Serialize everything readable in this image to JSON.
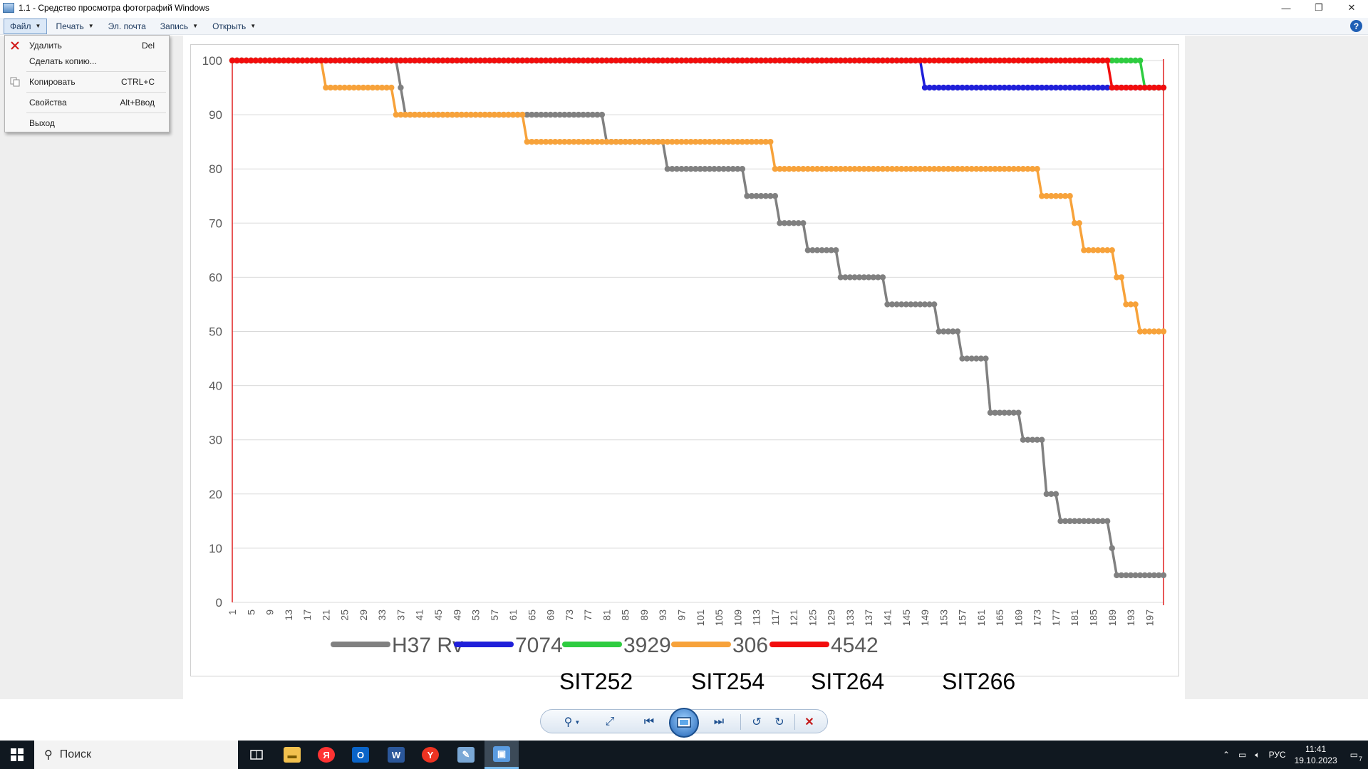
{
  "window": {
    "title": "1.1 - Средство просмотра фотографий Windows",
    "minimize": "—",
    "restore": "❐",
    "close": "✕"
  },
  "menubar": {
    "items": [
      {
        "label": "Файл",
        "active": true
      },
      {
        "label": "Печать"
      },
      {
        "label": "Эл. почта"
      },
      {
        "label": "Запись"
      },
      {
        "label": "Открыть"
      }
    ],
    "help_icon": "?"
  },
  "file_menu": {
    "items": [
      {
        "label": "Удалить",
        "shortcut": "Del",
        "icon": "delete-icon"
      },
      {
        "label": "Сделать копию...",
        "shortcut": ""
      },
      {
        "label": "Копировать",
        "shortcut": "CTRL+C",
        "icon": "copy-icon"
      },
      {
        "label": "Свойства",
        "shortcut": "Alt+Ввод"
      },
      {
        "label": "Выход",
        "shortcut": ""
      }
    ]
  },
  "chart_data": {
    "type": "line",
    "title": "",
    "xlabel": "",
    "ylabel": "",
    "ylim": [
      0,
      100
    ],
    "yticks": [
      0,
      10,
      20,
      30,
      40,
      50,
      60,
      70,
      80,
      90,
      100
    ],
    "xlim": [
      1,
      200
    ],
    "xtick_labels": [
      "1",
      "5",
      "9",
      "13",
      "17",
      "21",
      "25",
      "29",
      "33",
      "37",
      "41",
      "45",
      "49",
      "53",
      "57",
      "61",
      "65",
      "69",
      "73",
      "77",
      "81",
      "85",
      "89",
      "93",
      "97",
      "101",
      "105",
      "109",
      "113",
      "117",
      "121",
      "125",
      "129",
      "133",
      "137",
      "141",
      "145",
      "149",
      "153",
      "157",
      "161",
      "165",
      "169",
      "173",
      "177",
      "181",
      "185",
      "189",
      "193",
      "197"
    ],
    "grid": true,
    "legend_position": "bottom",
    "series": [
      {
        "name": "H37 Rv",
        "color": "#808080",
        "steps": [
          [
            1,
            100
          ],
          [
            37,
            95
          ],
          [
            38,
            90
          ],
          [
            81,
            85
          ],
          [
            94,
            80
          ],
          [
            111,
            75
          ],
          [
            118,
            70
          ],
          [
            124,
            65
          ],
          [
            131,
            60
          ],
          [
            141,
            55
          ],
          [
            152,
            50
          ],
          [
            157,
            45
          ],
          [
            163,
            35
          ],
          [
            170,
            30
          ],
          [
            175,
            20
          ],
          [
            178,
            15
          ],
          [
            189,
            10
          ],
          [
            190,
            5
          ],
          [
            200,
            5
          ]
        ]
      },
      {
        "name": "7074",
        "color": "#1f1fd9",
        "steps": [
          [
            1,
            100
          ],
          [
            149,
            95
          ],
          [
            200,
            95
          ]
        ]
      },
      {
        "name": "3929",
        "color": "#2ecc40",
        "steps": [
          [
            1,
            100
          ],
          [
            196,
            95
          ],
          [
            200,
            95
          ]
        ]
      },
      {
        "name": "306",
        "color": "#f7a23a",
        "steps": [
          [
            1,
            100
          ],
          [
            21,
            95
          ],
          [
            36,
            90
          ],
          [
            64,
            85
          ],
          [
            117,
            80
          ],
          [
            174,
            75
          ],
          [
            181,
            70
          ],
          [
            183,
            65
          ],
          [
            190,
            60
          ],
          [
            192,
            55
          ],
          [
            195,
            50
          ],
          [
            200,
            50
          ]
        ]
      },
      {
        "name": "4542",
        "color": "#f20d0d",
        "steps": [
          [
            1,
            100
          ],
          [
            189,
            95
          ],
          [
            200,
            95
          ]
        ]
      }
    ],
    "annotations": [
      "SIT252",
      "SIT254",
      "SIT264",
      "SIT266"
    ]
  },
  "toolbar": {
    "zoom": "⚲",
    "fit": "⤢",
    "prev": "⏮",
    "next": "⏭",
    "rotate_left": "↺",
    "rotate_right": "↻",
    "delete": "✕"
  },
  "taskbar": {
    "search_placeholder": "Поиск",
    "language": "РУС",
    "time": "11:41",
    "date": "19.10.2023",
    "notification_count": "7"
  }
}
